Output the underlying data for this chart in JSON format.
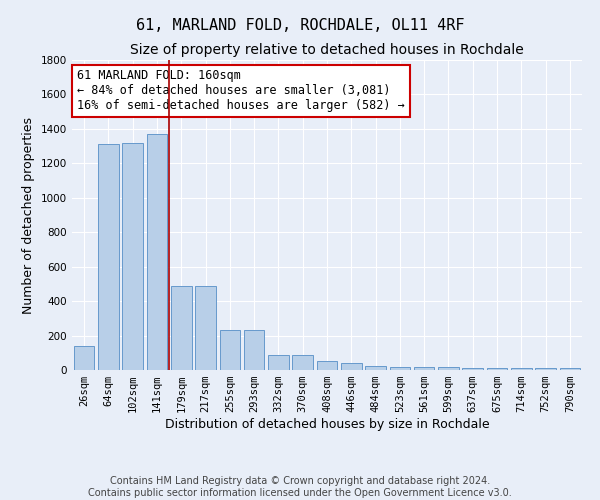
{
  "title": "61, MARLAND FOLD, ROCHDALE, OL11 4RF",
  "subtitle": "Size of property relative to detached houses in Rochdale",
  "xlabel": "Distribution of detached houses by size in Rochdale",
  "ylabel": "Number of detached properties",
  "categories": [
    "26sqm",
    "64sqm",
    "102sqm",
    "141sqm",
    "179sqm",
    "217sqm",
    "255sqm",
    "293sqm",
    "332sqm",
    "370sqm",
    "408sqm",
    "446sqm",
    "484sqm",
    "523sqm",
    "561sqm",
    "599sqm",
    "637sqm",
    "675sqm",
    "714sqm",
    "752sqm",
    "790sqm"
  ],
  "values": [
    140,
    1310,
    1320,
    1370,
    490,
    490,
    230,
    230,
    90,
    85,
    55,
    40,
    25,
    20,
    15,
    15,
    10,
    10,
    10,
    10,
    10
  ],
  "bar_color": "#b8cfe8",
  "bar_edge_color": "#6699cc",
  "background_color": "#e8eef8",
  "grid_color": "#ffffff",
  "vline_x": 3.5,
  "vline_color": "#aa0000",
  "ylim": [
    0,
    1800
  ],
  "annotation_text": "61 MARLAND FOLD: 160sqm\n← 84% of detached houses are smaller (3,081)\n16% of semi-detached houses are larger (582) →",
  "annotation_box_color": "#ffffff",
  "annotation_box_edge": "#cc0000",
  "footer_text": "Contains HM Land Registry data © Crown copyright and database right 2024.\nContains public sector information licensed under the Open Government Licence v3.0.",
  "title_fontsize": 11,
  "subtitle_fontsize": 10,
  "xlabel_fontsize": 9,
  "ylabel_fontsize": 9,
  "tick_fontsize": 7.5,
  "annotation_fontsize": 8.5,
  "footer_fontsize": 7
}
